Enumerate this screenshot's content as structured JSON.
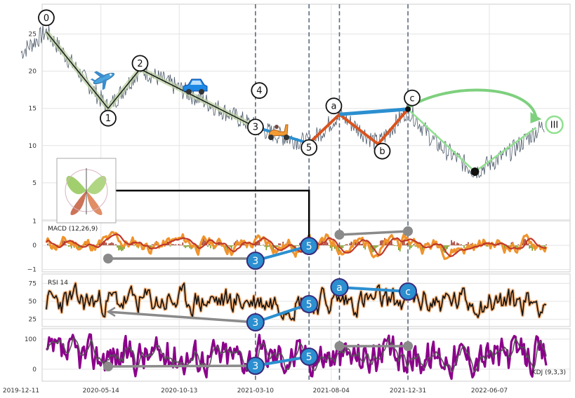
{
  "chart_data": {
    "type": "line",
    "x_ticks": [
      "2019-12-11",
      "2020-05-14",
      "2020-10-13",
      "2021-03-10",
      "2021-08-04",
      "2021-12-31",
      "2022-06-07"
    ],
    "price_axis": {
      "ticks": [
        5,
        10,
        15,
        20,
        25
      ],
      "ylim": [
        0,
        29
      ]
    },
    "vertical_markers": [
      "2021-03-10",
      "2021-06-22",
      "2021-08-20",
      "2021-12-31"
    ],
    "wave_points": [
      {
        "label": "0",
        "date": "2020-01-29",
        "value": 25.3
      },
      {
        "label": "1",
        "date": "2020-05-28",
        "value": 15.0
      },
      {
        "label": "2",
        "date": "2020-07-29",
        "value": 20.3
      },
      {
        "label": "3",
        "date": "2021-03-10",
        "value": 12.5
      },
      {
        "label": "4",
        "date": "2021-03-12",
        "value": 14.2
      },
      {
        "label": "5",
        "date": "2021-06-22",
        "value": 10.3
      },
      {
        "label": "a",
        "date": "2021-08-20",
        "value": 14.2
      },
      {
        "label": "b",
        "date": "2021-11-03",
        "value": 10.2
      },
      {
        "label": "c",
        "date": "2021-12-31",
        "value": 14.9
      },
      {
        "label": "III",
        "date": "2022-09-22",
        "value": 12.8
      }
    ],
    "low_point": {
      "date": "2022-05-10",
      "value": 6.5
    },
    "panels": [
      {
        "name": "MACD (12,26,9)",
        "ticks": [
          -1,
          0,
          1
        ],
        "ylim": [
          -1.1,
          1.05
        ],
        "series": [
          "MACD",
          "Signal",
          "Histogram"
        ]
      },
      {
        "name": "RSI 14",
        "ticks": [
          25,
          50,
          75
        ],
        "ylim": [
          15,
          88
        ]
      },
      {
        "name": "KDJ (9,3,3)",
        "ticks": [
          0,
          100
        ],
        "ylim": [
          -40,
          135
        ],
        "series": [
          "K",
          "D"
        ]
      }
    ],
    "divergences": [
      {
        "panel": "MACD (12,26,9)",
        "labels": [
          "3",
          "5"
        ],
        "color": "#2b8fd0"
      },
      {
        "panel": "RSI 14",
        "labels": [
          "3",
          "5"
        ],
        "color": "#2b8fd0"
      },
      {
        "panel": "RSI 14",
        "labels": [
          "a",
          "c"
        ],
        "color": "#2b8fd0"
      },
      {
        "panel": "KDJ (9,3,3)",
        "labels": [
          "3",
          "5"
        ],
        "color": "#2b8fd0"
      }
    ]
  },
  "icons": [
    "airplane-icon",
    "car-icon",
    "scooter-icon",
    "butterfly-thumbnail"
  ]
}
